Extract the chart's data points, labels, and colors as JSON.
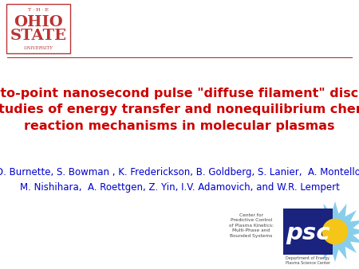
{
  "background_color": "#ffffff",
  "title_text": "\"Point-to-point nanosecond pulse \"diffuse filament\" discharges\nfor studies of energy transfer and nonequilibrium chemical\nreaction mechanisms in molecular plasmas",
  "title_color": "#cc0000",
  "title_fontsize": 11.5,
  "authors_line1": "D. Burnette, S. Bowman , K. Frederickson, B. Goldberg, S. Lanier,  A. Montello,",
  "authors_line2": "M. Nishihara,  A. Roettgen, Z. Yin, I.V. Adamovich, and W.R. Lempert",
  "authors_color": "#0000cc",
  "authors_fontsize": 8.5,
  "line_color": "#bb3333",
  "osu_box_color": "#bb3333",
  "osu_text_THE": "T · H · E",
  "osu_text_OHIO": "OHIO",
  "osu_text_STATE": "STATE",
  "osu_text_UNIVERSITY": "UNIVERSITY",
  "psc_center_text": "Center for\nPredictive Control\nof Plasma Kinetics:\nMulti-Phase and\nBounded Systems",
  "psc_doe_text": "Department of Energy\nPlasma Science Center",
  "psc_text_color": "#444444",
  "psc_box_color": "#1a237e",
  "psc_letter_color": "#ffffff",
  "starburst_color": "#87ceeb",
  "sun_color": "#f5c518"
}
